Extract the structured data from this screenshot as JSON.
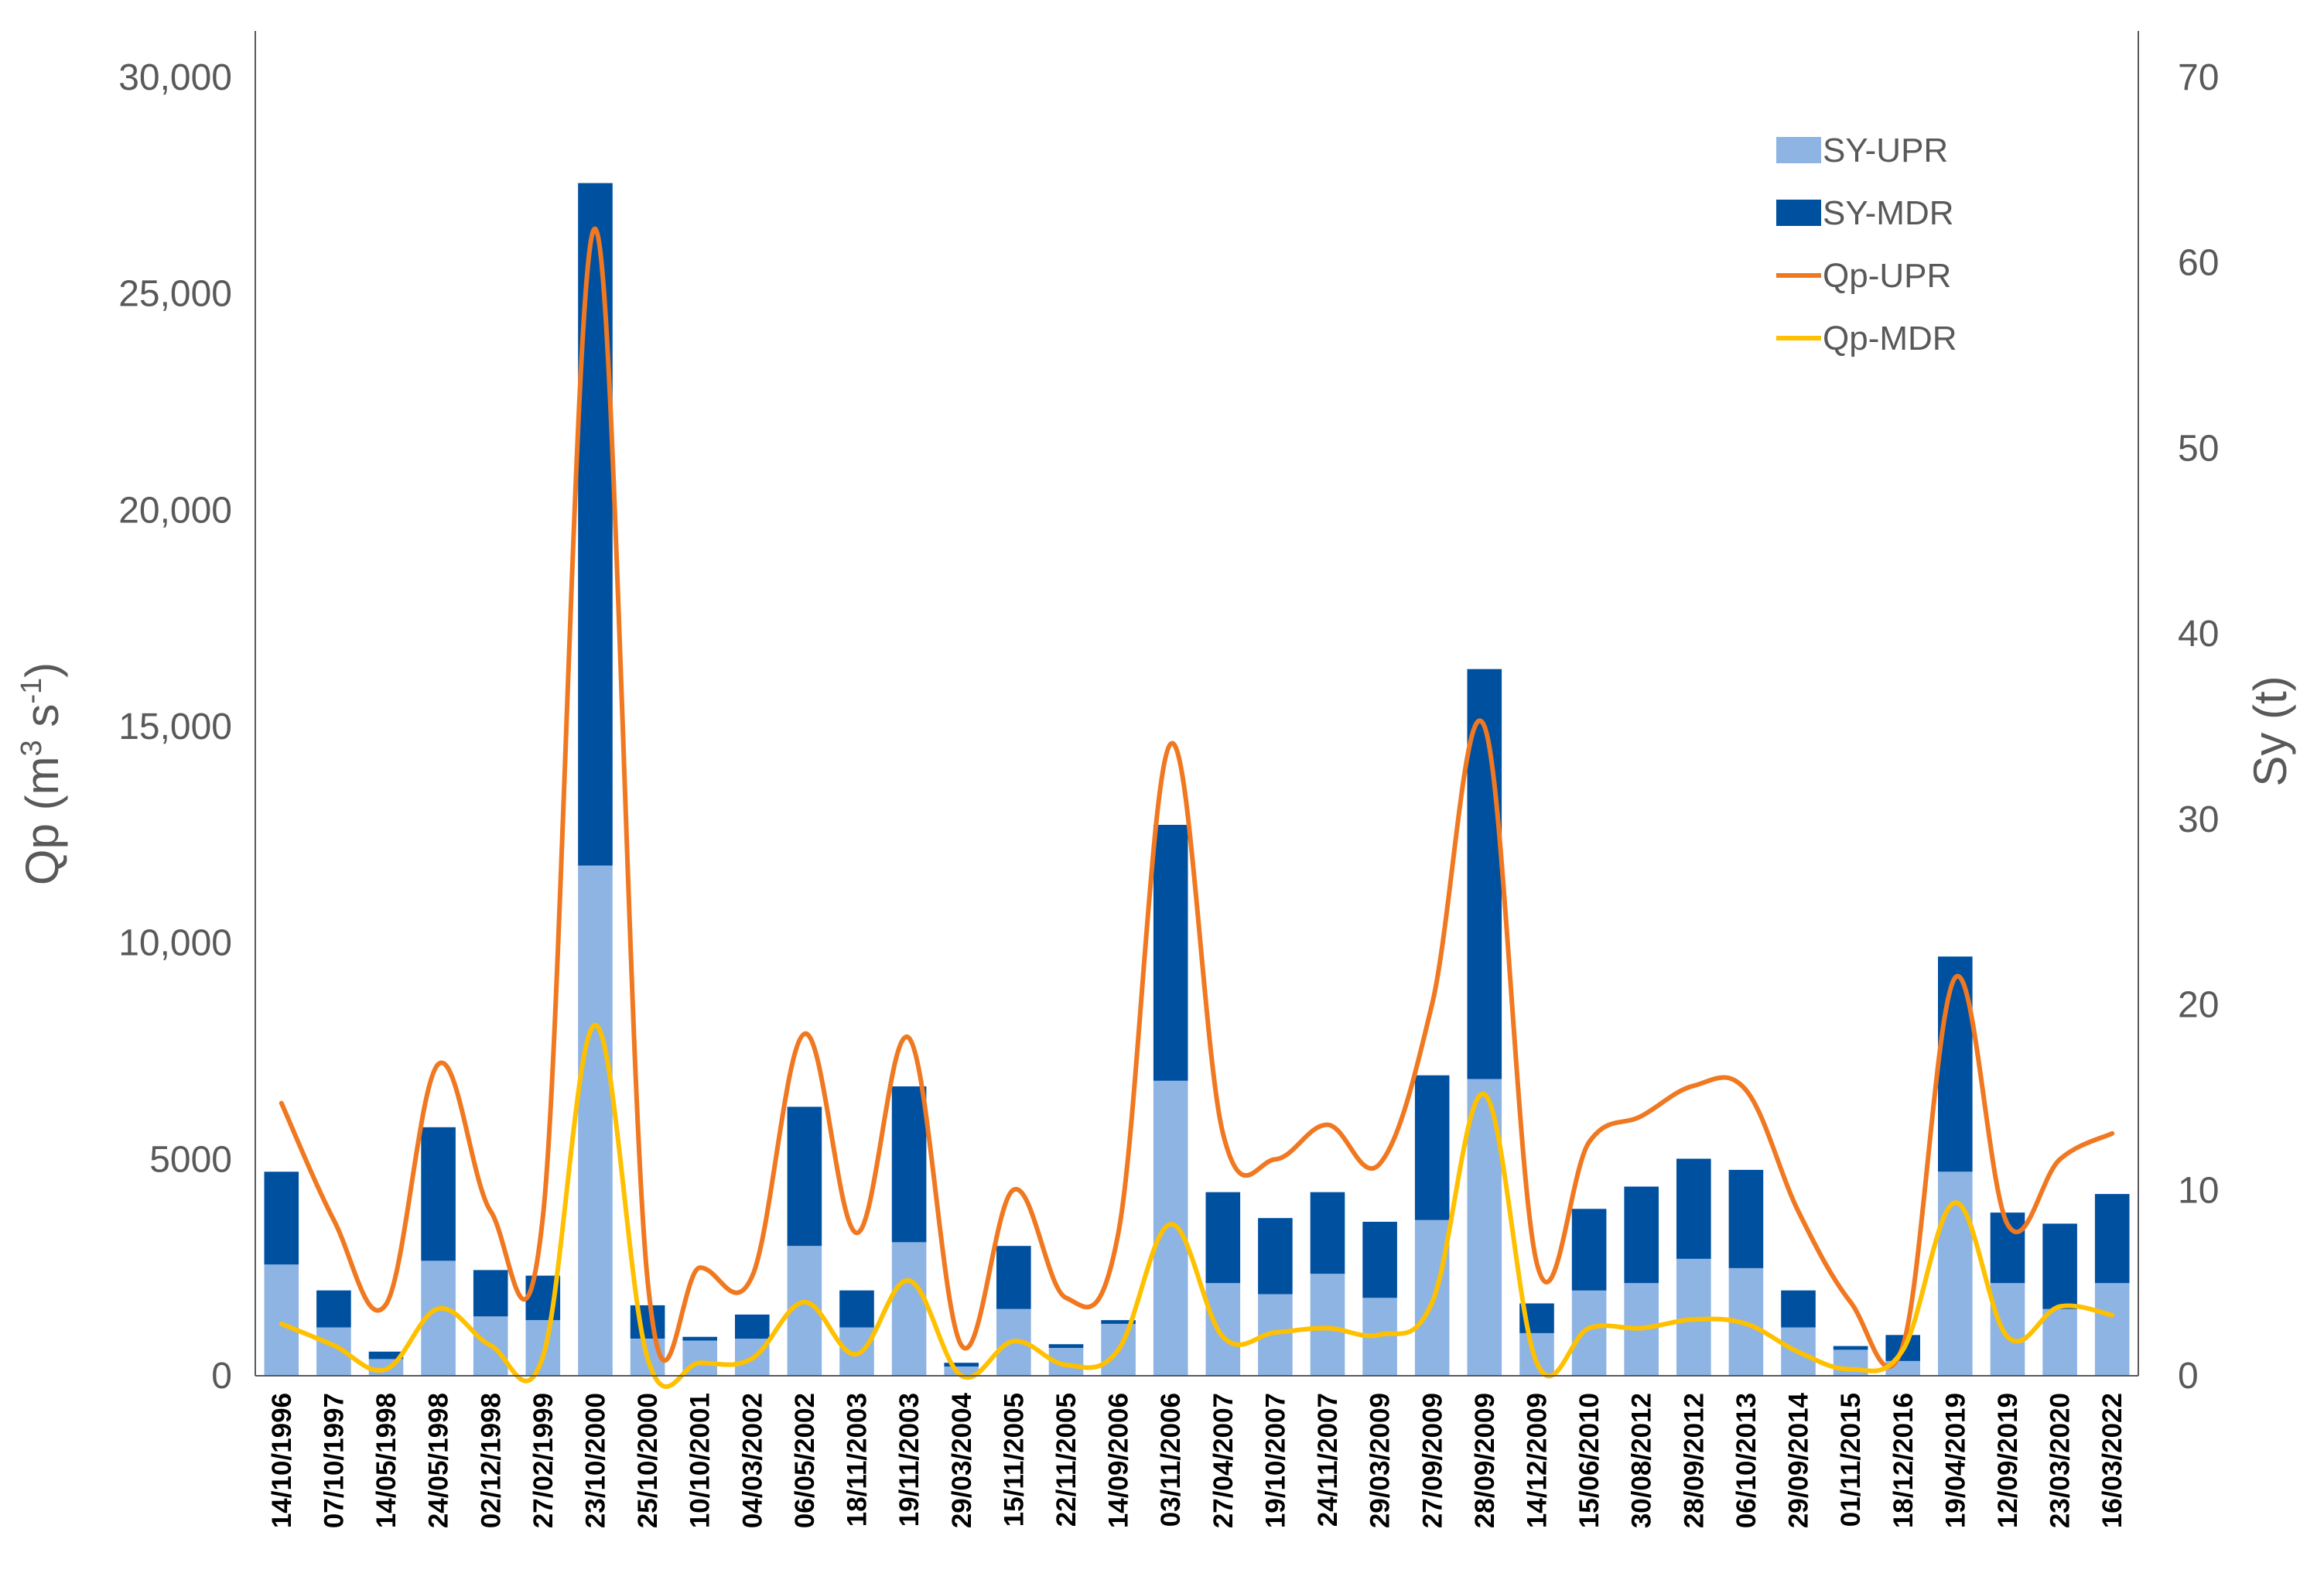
{
  "chart_data": {
    "type": "bar",
    "categories": [
      "14/10/1996",
      "07/10/1997",
      "14/05/1998",
      "24/05/1998",
      "02/12/1998",
      "27/02/1999",
      "23/10/2000",
      "25/10/2000",
      "10/10/2001",
      "04/03/2002",
      "06/05/2002",
      "18/11/2003",
      "19/11/2003",
      "29/03/2004",
      "15/11/2005",
      "22/11/2005",
      "14/09/2006",
      "03/11/2006",
      "27/04/2007",
      "19/10/2007",
      "24/11/2007",
      "29/03/2009",
      "27/09/2009",
      "28/09/2009",
      "14/12/2009",
      "15/06/2010",
      "30/08/2012",
      "28/09/2012",
      "06/10/2013",
      "29/09/2014",
      "01/11/2015",
      "18/12/2016",
      "19/04/2019",
      "12/09/2019",
      "23/03/2020",
      "16/03/2022"
    ],
    "bar_series": [
      {
        "name": "SY-UPR",
        "color": "#8EB4E3",
        "axis": "right",
        "values": [
          6.0,
          2.6,
          0.9,
          6.2,
          3.2,
          3.0,
          27.5,
          2.0,
          1.9,
          2.0,
          7.0,
          2.6,
          7.2,
          0.5,
          3.6,
          1.5,
          2.8,
          15.9,
          5.0,
          4.4,
          5.5,
          4.2,
          8.4,
          16.0,
          2.3,
          4.6,
          5.0,
          6.3,
          5.8,
          2.6,
          1.4,
          0.8,
          11.0,
          5.0,
          3.6,
          5.0
        ]
      },
      {
        "name": "SY-MDR",
        "color": "#0050A0",
        "axis": "right",
        "values": [
          5.0,
          2.0,
          0.4,
          7.2,
          2.5,
          2.4,
          36.8,
          1.8,
          0.2,
          1.3,
          7.5,
          2.0,
          8.4,
          0.2,
          3.4,
          0.2,
          0.2,
          13.8,
          4.9,
          4.1,
          4.4,
          4.1,
          7.8,
          22.1,
          1.6,
          4.4,
          5.2,
          5.4,
          5.3,
          2.0,
          0.2,
          1.4,
          11.6,
          3.8,
          4.6,
          4.8
        ]
      }
    ],
    "line_series": [
      {
        "name": "Qp-UPR",
        "color": "#F07820",
        "axis": "left",
        "values": [
          6300,
          3600,
          1650,
          7200,
          3800,
          3700,
          26500,
          2200,
          2500,
          2300,
          7900,
          3300,
          7800,
          700,
          4300,
          1800,
          3300,
          14600,
          5600,
          5000,
          5800,
          4900,
          8600,
          15000,
          2600,
          5400,
          6000,
          6700,
          6600,
          3800,
          1700,
          700,
          9200,
          3500,
          5000,
          5600
        ]
      },
      {
        "name": "Qp-MDR",
        "color": "#FFC000",
        "axis": "left",
        "values": [
          1200,
          700,
          150,
          1550,
          700,
          450,
          8100,
          400,
          300,
          400,
          1700,
          500,
          2200,
          0,
          800,
          250,
          600,
          3500,
          900,
          1000,
          1100,
          950,
          1700,
          6500,
          300,
          1100,
          1100,
          1300,
          1200,
          550,
          150,
          600,
          4000,
          900,
          1600,
          1400
        ]
      }
    ],
    "y_left": {
      "label": "Qp (m³ s⁻¹)",
      "label_main": "Qp (m",
      "label_sup1": "3",
      "label_mid": " s",
      "label_sup2": "-1",
      "label_end": ")",
      "min": 0,
      "max": 30000,
      "ticks": [
        0,
        5000,
        10000,
        15000,
        20000,
        25000,
        30000
      ],
      "tick_labels": [
        "0",
        "5000",
        "10,000",
        "15,000",
        "20,000",
        "25,000",
        "30,000"
      ]
    },
    "y_right": {
      "label": "Sy (t)",
      "min": 0,
      "max": 70,
      "ticks": [
        0,
        10,
        20,
        30,
        40,
        50,
        60,
        70
      ],
      "tick_labels": [
        "0",
        "10",
        "20",
        "30",
        "40",
        "50",
        "60",
        "70"
      ]
    },
    "legend": {
      "position": "top-right",
      "items": [
        {
          "label": "SY-UPR",
          "kind": "bar",
          "color": "#8EB4E3"
        },
        {
          "label": "SY-MDR",
          "kind": "bar",
          "color": "#0050A0"
        },
        {
          "label": "Qp-UPR",
          "kind": "line",
          "color": "#F07820"
        },
        {
          "label": "Qp-MDR",
          "kind": "line",
          "color": "#FFC000"
        }
      ]
    },
    "grid": false,
    "title": ""
  }
}
